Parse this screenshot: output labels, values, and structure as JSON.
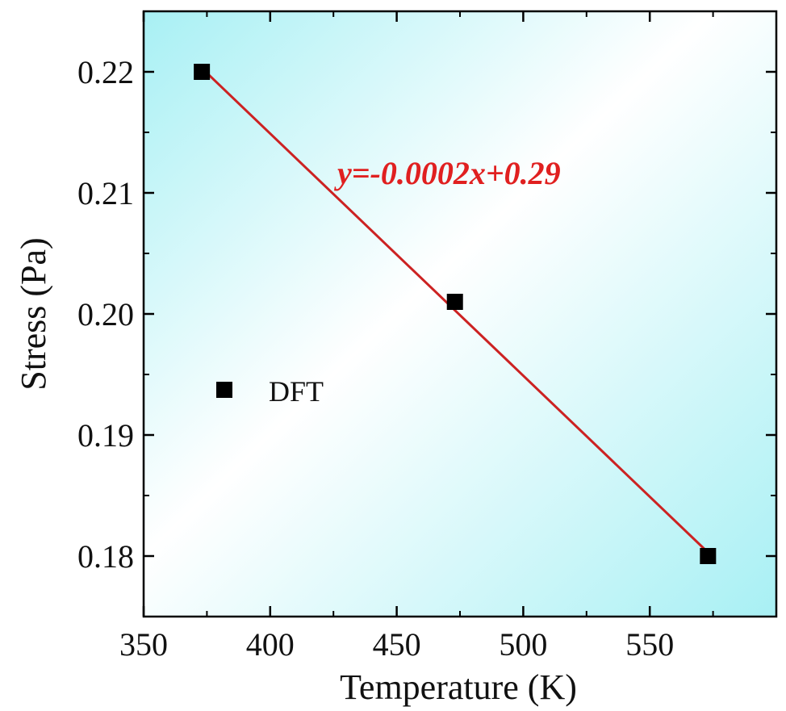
{
  "chart_data": {
    "type": "scatter",
    "title": "",
    "xlabel": "Temperature (K)",
    "ylabel": "Stress (Pa)",
    "xlim": [
      350,
      600
    ],
    "ylim": [
      0.175,
      0.225
    ],
    "xticks": [
      350,
      400,
      450,
      500,
      550
    ],
    "yticks": [
      0.18,
      0.19,
      0.2,
      0.21,
      0.22
    ],
    "xtick_labels": [
      "350",
      "400",
      "450",
      "500",
      "550"
    ],
    "ytick_labels": [
      "0.18",
      "0.19",
      "0.20",
      "0.21",
      "0.22"
    ],
    "grid": false,
    "legend_placement": "left",
    "series": [
      {
        "name": "DFT",
        "marker": "square",
        "color": "#000000",
        "x": [
          373,
          473,
          573
        ],
        "y": [
          0.22,
          0.201,
          0.18
        ]
      }
    ],
    "fit_line": {
      "color": "#cc2222",
      "x": [
        373,
        573
      ],
      "y": [
        0.2203,
        0.1803
      ]
    },
    "annotation": {
      "text": "y=-0.0002x+0.29",
      "color": "#e02020"
    },
    "background": {
      "gradient_colors": [
        "#a8f0f4",
        "#ffffff",
        "#a8f0f4"
      ]
    }
  }
}
